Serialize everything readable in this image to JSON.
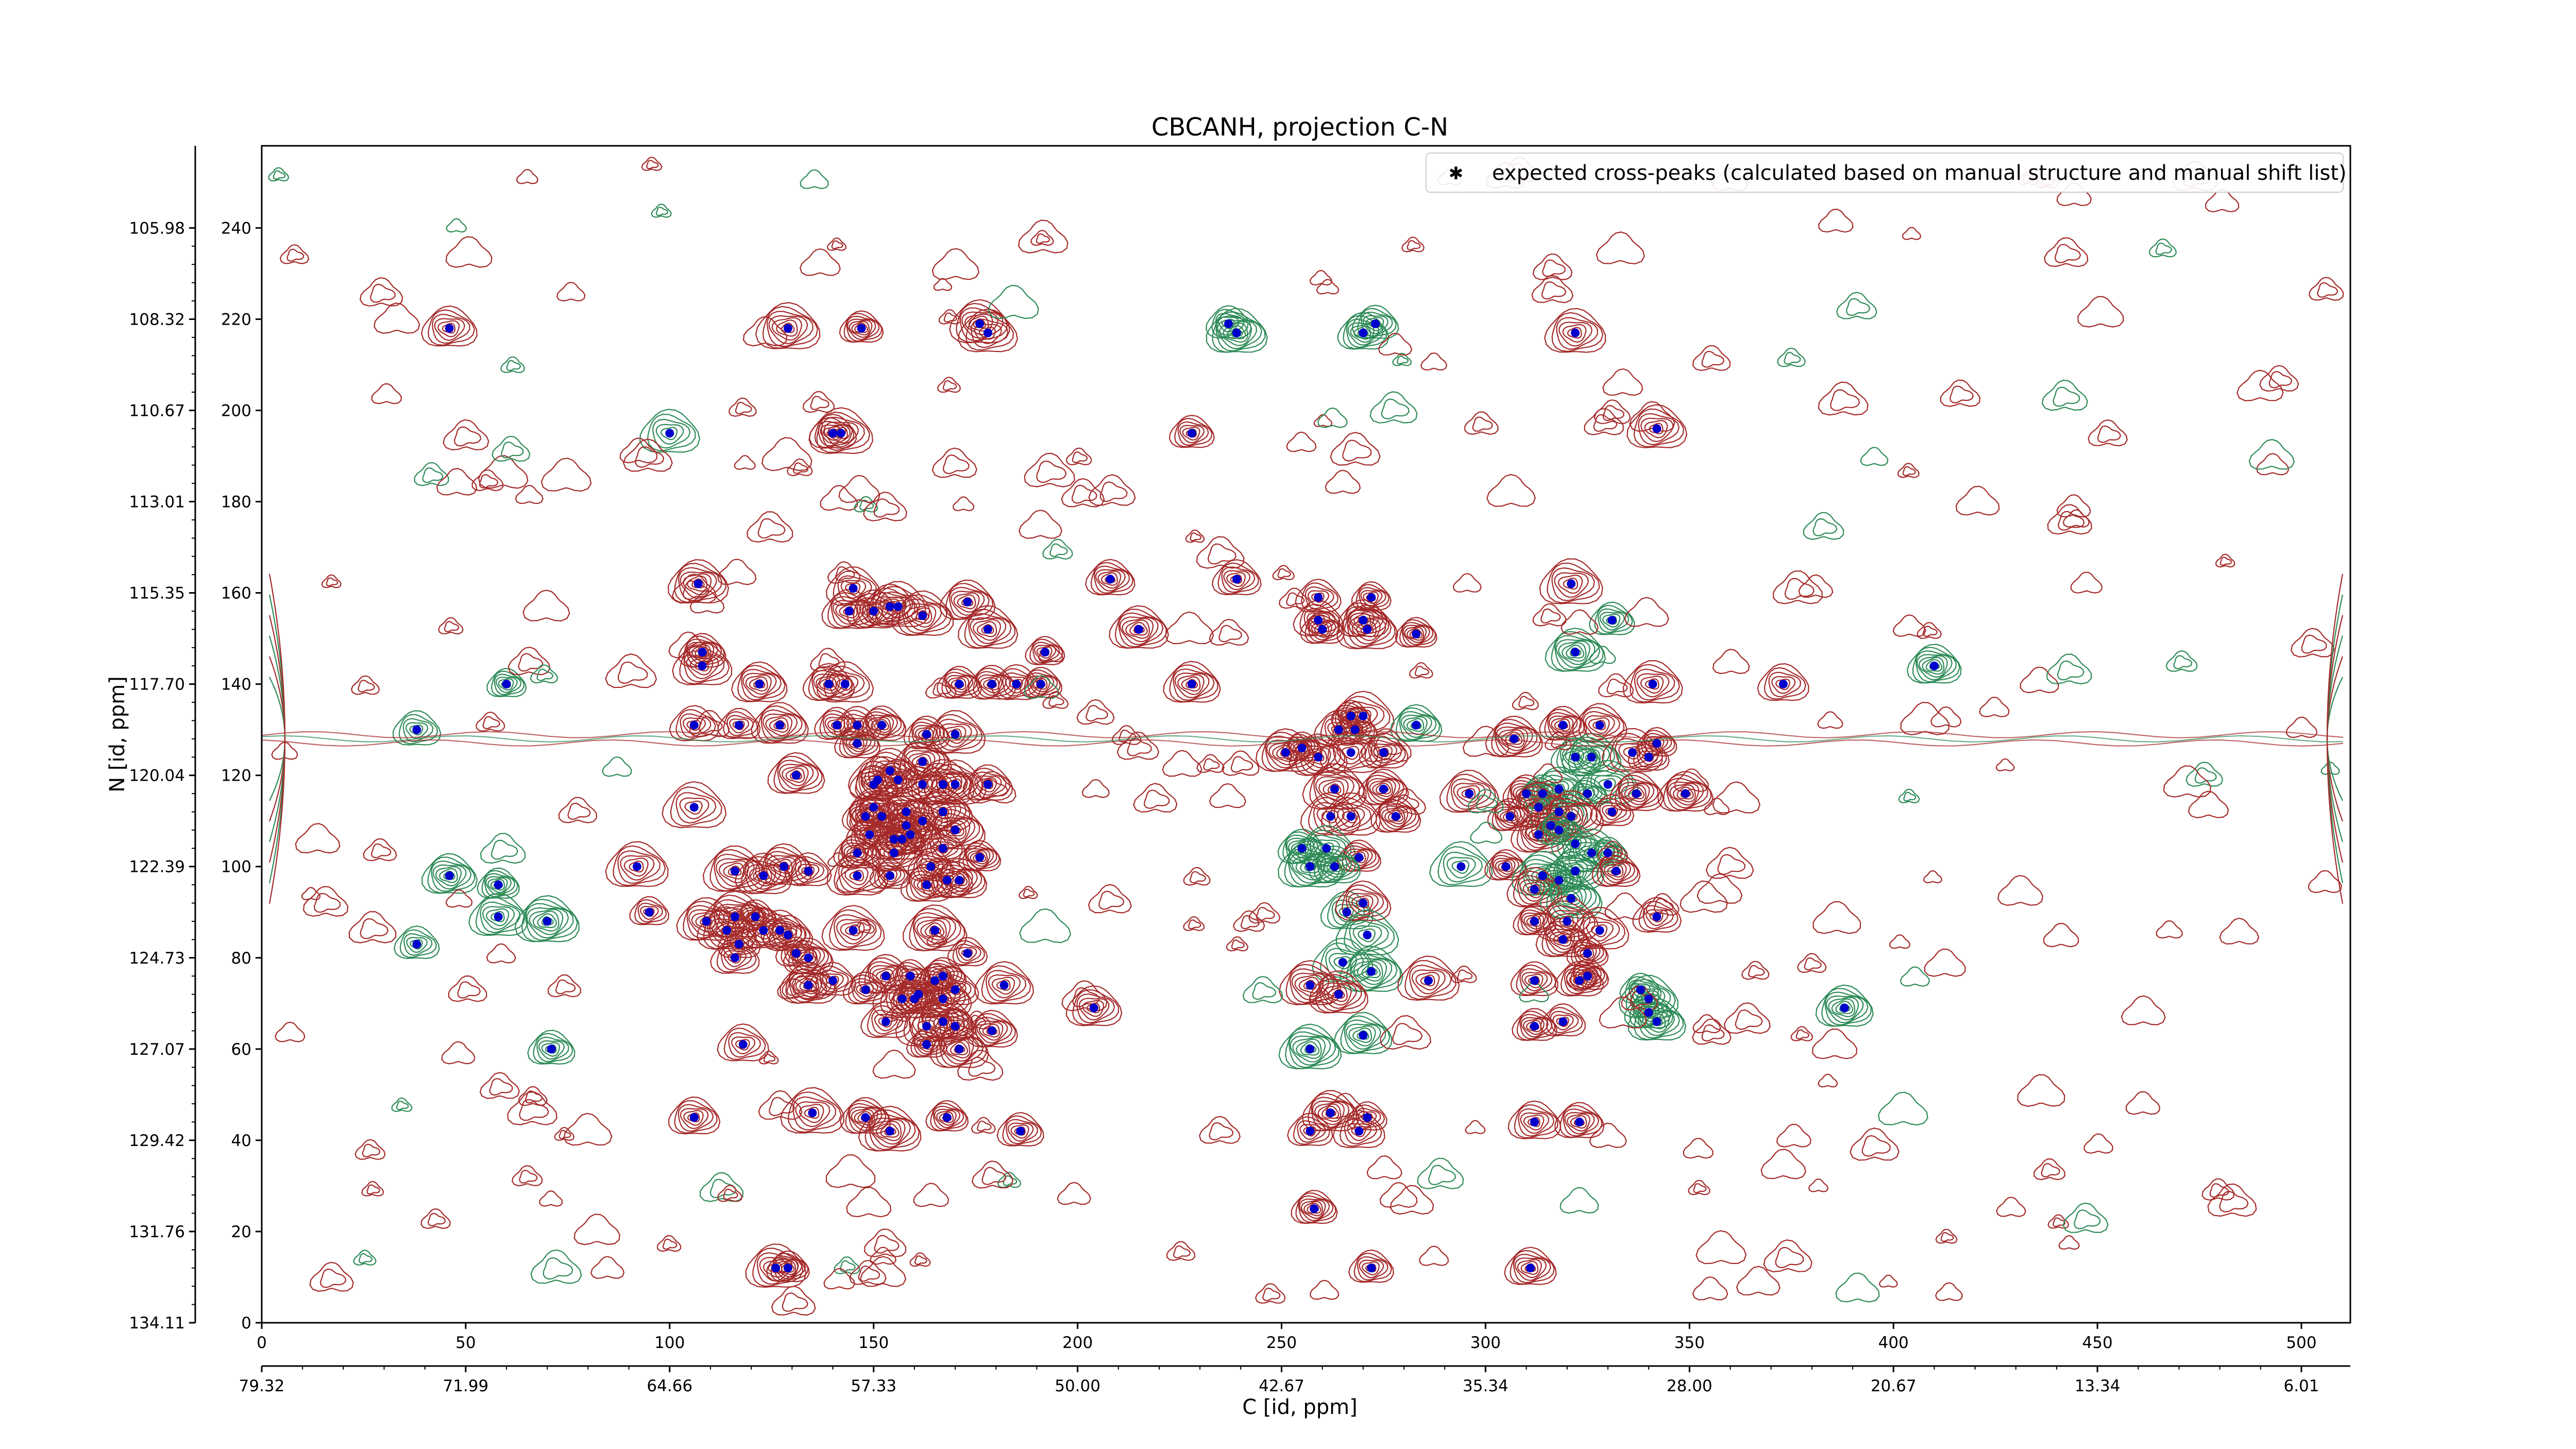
{
  "chart_data": {
    "type": "scatter",
    "title": "CBCANH, projection C-N",
    "xlabel": "C [id, ppm]",
    "ylabel": "N [id, ppm]",
    "xlim": [
      0,
      512
    ],
    "ylim": [
      0,
      258
    ],
    "x_ticks": [
      0,
      50,
      100,
      150,
      200,
      250,
      300,
      350,
      400,
      450,
      500
    ],
    "y_ticks": [
      0,
      20,
      40,
      60,
      80,
      100,
      120,
      140,
      160,
      180,
      200,
      220,
      240
    ],
    "x_ppm_ticks": [
      {
        "pos": 0,
        "label": "79.32"
      },
      {
        "pos": 50,
        "label": "71.99"
      },
      {
        "pos": 100,
        "label": "64.66"
      },
      {
        "pos": 150,
        "label": "57.33"
      },
      {
        "pos": 200,
        "label": "50.00"
      },
      {
        "pos": 250,
        "label": "42.67"
      },
      {
        "pos": 300,
        "label": "35.34"
      },
      {
        "pos": 350,
        "label": "28.00"
      },
      {
        "pos": 400,
        "label": "20.67"
      },
      {
        "pos": 450,
        "label": "13.34"
      },
      {
        "pos": 500,
        "label": "6.01"
      }
    ],
    "y_ppm_ticks": [
      {
        "pos": 0,
        "label": "134.11"
      },
      {
        "pos": 20,
        "label": "131.76"
      },
      {
        "pos": 40,
        "label": "129.42"
      },
      {
        "pos": 60,
        "label": "127.07"
      },
      {
        "pos": 80,
        "label": "124.73"
      },
      {
        "pos": 100,
        "label": "122.39"
      },
      {
        "pos": 120,
        "label": "120.04"
      },
      {
        "pos": 140,
        "label": "117.70"
      },
      {
        "pos": 160,
        "label": "115.35"
      },
      {
        "pos": 180,
        "label": "113.01"
      },
      {
        "pos": 200,
        "label": "110.67"
      },
      {
        "pos": 220,
        "label": "108.32"
      },
      {
        "pos": 240,
        "label": "105.98"
      }
    ],
    "legend": {
      "placement": "top-right",
      "label": "expected cross-peaks (calculated based on manual structure and manual shift list)"
    },
    "colors": {
      "peak_marker": "#0000cc",
      "contour_positive": "#a52a2a",
      "contour_negative": "#2e8b57"
    },
    "series": [
      {
        "name": "expected cross-peaks (calculated based on manual structure and manual shift list)",
        "points": [
          [
            46,
            218
          ],
          [
            129,
            218
          ],
          [
            147,
            218
          ],
          [
            176,
            219
          ],
          [
            178,
            217
          ],
          [
            237,
            219
          ],
          [
            239,
            217
          ],
          [
            270,
            217
          ],
          [
            273,
            219
          ],
          [
            322,
            217
          ],
          [
            100,
            195
          ],
          [
            140,
            195
          ],
          [
            142,
            195
          ],
          [
            228,
            195
          ],
          [
            342,
            196
          ],
          [
            107,
            162
          ],
          [
            145,
            161
          ],
          [
            208,
            163
          ],
          [
            239,
            163
          ],
          [
            321,
            162
          ],
          [
            259,
            159
          ],
          [
            272,
            159
          ],
          [
            259,
            154
          ],
          [
            270,
            154
          ],
          [
            144,
            156
          ],
          [
            150,
            156
          ],
          [
            154,
            157
          ],
          [
            156,
            157
          ],
          [
            162,
            155
          ],
          [
            173,
            158
          ],
          [
            178,
            152
          ],
          [
            215,
            152
          ],
          [
            260,
            152
          ],
          [
            271,
            152
          ],
          [
            283,
            151
          ],
          [
            331,
            154
          ],
          [
            108,
            147
          ],
          [
            108,
            144
          ],
          [
            192,
            147
          ],
          [
            322,
            147
          ],
          [
            410,
            144
          ],
          [
            60,
            140
          ],
          [
            122,
            140
          ],
          [
            139,
            140
          ],
          [
            143,
            140
          ],
          [
            171,
            140
          ],
          [
            179,
            140
          ],
          [
            185,
            140
          ],
          [
            191,
            140
          ],
          [
            228,
            140
          ],
          [
            341,
            140
          ],
          [
            373,
            140
          ],
          [
            38,
            130
          ],
          [
            106,
            131
          ],
          [
            117,
            131
          ],
          [
            127,
            131
          ],
          [
            141,
            131
          ],
          [
            146,
            131
          ],
          [
            152,
            131
          ],
          [
            146,
            127
          ],
          [
            163,
            129
          ],
          [
            170,
            129
          ],
          [
            162,
            123
          ],
          [
            154,
            121
          ],
          [
            151,
            119
          ],
          [
            156,
            119
          ],
          [
            131,
            120
          ],
          [
            150,
            118
          ],
          [
            162,
            118
          ],
          [
            167,
            118
          ],
          [
            170,
            118
          ],
          [
            178,
            118
          ],
          [
            106,
            113
          ],
          [
            150,
            113
          ],
          [
            148,
            111
          ],
          [
            152,
            111
          ],
          [
            158,
            112
          ],
          [
            167,
            112
          ],
          [
            158,
            109
          ],
          [
            162,
            110
          ],
          [
            149,
            107
          ],
          [
            155,
            106
          ],
          [
            157,
            106
          ],
          [
            159,
            107
          ],
          [
            146,
            103
          ],
          [
            155,
            103
          ],
          [
            170,
            108
          ],
          [
            167,
            104
          ],
          [
            164,
            100
          ],
          [
            168,
            97
          ],
          [
            171,
            97
          ],
          [
            154,
            98
          ],
          [
            163,
            96
          ],
          [
            176,
            102
          ],
          [
            46,
            98
          ],
          [
            58,
            96
          ],
          [
            58,
            89
          ],
          [
            70,
            88
          ],
          [
            38,
            83
          ],
          [
            92,
            100
          ],
          [
            116,
            99
          ],
          [
            123,
            98
          ],
          [
            128,
            100
          ],
          [
            134,
            99
          ],
          [
            146,
            98
          ],
          [
            95,
            90
          ],
          [
            109,
            88
          ],
          [
            114,
            86
          ],
          [
            116,
            89
          ],
          [
            121,
            89
          ],
          [
            123,
            86
          ],
          [
            127,
            86
          ],
          [
            117,
            83
          ],
          [
            129,
            85
          ],
          [
            145,
            86
          ],
          [
            165,
            86
          ],
          [
            116,
            80
          ],
          [
            131,
            81
          ],
          [
            134,
            80
          ],
          [
            140,
            75
          ],
          [
            153,
            76
          ],
          [
            159,
            76
          ],
          [
            165,
            75
          ],
          [
            167,
            76
          ],
          [
            161,
            72
          ],
          [
            167,
            71
          ],
          [
            173,
            81
          ],
          [
            134,
            74
          ],
          [
            148,
            73
          ],
          [
            157,
            71
          ],
          [
            160,
            71
          ],
          [
            153,
            66
          ],
          [
            163,
            65
          ],
          [
            167,
            66
          ],
          [
            170,
            65
          ],
          [
            182,
            74
          ],
          [
            170,
            73
          ],
          [
            204,
            69
          ],
          [
            179,
            64
          ],
          [
            163,
            61
          ],
          [
            171,
            60
          ],
          [
            118,
            61
          ],
          [
            71,
            60
          ],
          [
            106,
            45
          ],
          [
            135,
            46
          ],
          [
            148,
            45
          ],
          [
            154,
            42
          ],
          [
            168,
            45
          ],
          [
            186,
            42
          ],
          [
            126,
            12
          ],
          [
            129,
            12
          ],
          [
            267,
            133
          ],
          [
            270,
            133
          ],
          [
            264,
            130
          ],
          [
            268,
            130
          ],
          [
            283,
            131
          ],
          [
            307,
            128
          ],
          [
            319,
            131
          ],
          [
            328,
            131
          ],
          [
            255,
            126
          ],
          [
            251,
            125
          ],
          [
            259,
            124
          ],
          [
            267,
            125
          ],
          [
            275,
            125
          ],
          [
            322,
            124
          ],
          [
            326,
            124
          ],
          [
            336,
            125
          ],
          [
            342,
            127
          ],
          [
            340,
            124
          ],
          [
            263,
            117
          ],
          [
            275,
            117
          ],
          [
            296,
            116
          ],
          [
            310,
            116
          ],
          [
            314,
            116
          ],
          [
            318,
            117
          ],
          [
            325,
            116
          ],
          [
            330,
            118
          ],
          [
            337,
            116
          ],
          [
            349,
            116
          ],
          [
            262,
            111
          ],
          [
            267,
            111
          ],
          [
            278,
            111
          ],
          [
            306,
            111
          ],
          [
            313,
            113
          ],
          [
            318,
            112
          ],
          [
            321,
            111
          ],
          [
            331,
            112
          ],
          [
            255,
            104
          ],
          [
            261,
            104
          ],
          [
            313,
            107
          ],
          [
            316,
            109
          ],
          [
            318,
            108
          ],
          [
            322,
            105
          ],
          [
            326,
            103
          ],
          [
            330,
            103
          ],
          [
            257,
            100
          ],
          [
            269,
            102
          ],
          [
            263,
            100
          ],
          [
            294,
            100
          ],
          [
            305,
            100
          ],
          [
            314,
            98
          ],
          [
            318,
            97
          ],
          [
            322,
            99
          ],
          [
            332,
            99
          ],
          [
            312,
            95
          ],
          [
            321,
            93
          ],
          [
            266,
            90
          ],
          [
            270,
            92
          ],
          [
            312,
            88
          ],
          [
            320,
            88
          ],
          [
            328,
            86
          ],
          [
            319,
            84
          ],
          [
            325,
            81
          ],
          [
            342,
            89
          ],
          [
            271,
            85
          ],
          [
            265,
            79
          ],
          [
            272,
            77
          ],
          [
            312,
            75
          ],
          [
            323,
            75
          ],
          [
            325,
            76
          ],
          [
            257,
            74
          ],
          [
            264,
            72
          ],
          [
            286,
            75
          ],
          [
            338,
            73
          ],
          [
            340,
            71
          ],
          [
            340,
            68
          ],
          [
            342,
            66
          ],
          [
            312,
            65
          ],
          [
            319,
            66
          ],
          [
            388,
            69
          ],
          [
            257,
            60
          ],
          [
            270,
            63
          ],
          [
            262,
            46
          ],
          [
            271,
            45
          ],
          [
            269,
            42
          ],
          [
            257,
            42
          ],
          [
            258,
            25
          ],
          [
            312,
            44
          ],
          [
            323,
            44
          ],
          [
            272,
            12
          ],
          [
            311,
            12
          ]
        ]
      }
    ]
  }
}
